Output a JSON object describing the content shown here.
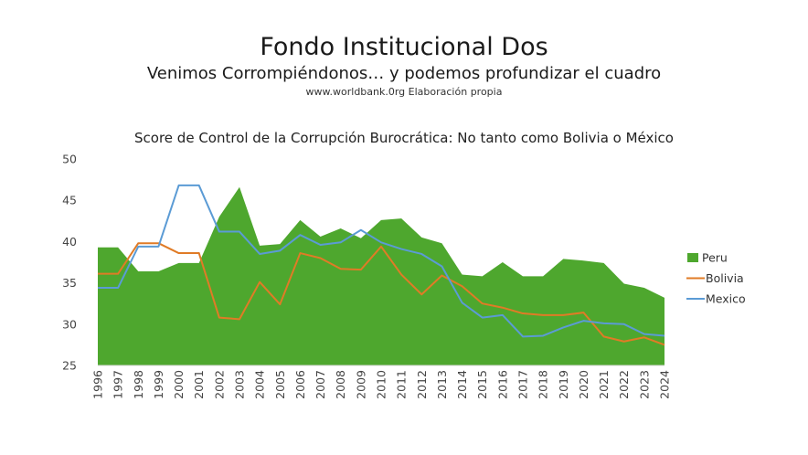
{
  "page": {
    "title": "Fondo Institucional Dos",
    "subtitle": "Venimos Corrompiéndonos… y podemos profundizar el cuadro",
    "source": "www.worldbank.0rg Elaboración propia"
  },
  "chart_data": {
    "type": "area",
    "title": "Score de Control de la Corrupción Burocrática: No tanto como Bolivia o México",
    "categories": [
      "1996",
      "1997",
      "1998",
      "1999",
      "2000",
      "2001",
      "2002",
      "2003",
      "2004",
      "2005",
      "2006",
      "2007",
      "2008",
      "2009",
      "2010",
      "2011",
      "2012",
      "2013",
      "2014",
      "2015",
      "2016",
      "2017",
      "2018",
      "2019",
      "2020",
      "2021",
      "2022",
      "2023",
      "2024"
    ],
    "ylim": [
      25,
      50
    ],
    "yticks": [
      25,
      30,
      35,
      40,
      45,
      50
    ],
    "legend_position": "right",
    "grid": false,
    "series": [
      {
        "name": "Peru",
        "kind": "area",
        "color": "#4ea72e",
        "values": [
          39.3,
          39.3,
          36.4,
          36.4,
          37.4,
          37.4,
          43.0,
          46.6,
          39.5,
          39.7,
          42.6,
          40.6,
          41.6,
          40.4,
          42.6,
          42.8,
          40.5,
          39.8,
          36.0,
          35.8,
          37.5,
          35.8,
          35.8,
          37.9,
          37.7,
          37.4,
          34.9,
          34.4,
          33.2
        ]
      },
      {
        "name": "Bolivia",
        "kind": "line",
        "color": "#e07b26",
        "values": [
          36.1,
          36.1,
          39.8,
          39.8,
          38.6,
          38.6,
          30.8,
          30.6,
          35.1,
          32.4,
          38.6,
          38.0,
          36.7,
          36.6,
          39.4,
          36.0,
          33.6,
          35.9,
          34.6,
          32.5,
          32.0,
          31.3,
          31.1,
          31.1,
          31.4,
          28.5,
          27.9,
          28.4,
          27.5
        ]
      },
      {
        "name": "Mexico",
        "kind": "line",
        "color": "#5b9bd5",
        "values": [
          34.4,
          34.4,
          39.4,
          39.4,
          46.8,
          46.8,
          41.2,
          41.2,
          38.5,
          38.9,
          40.8,
          39.6,
          39.9,
          41.4,
          39.9,
          39.1,
          38.5,
          37.0,
          32.6,
          30.8,
          31.1,
          28.5,
          28.6,
          29.6,
          30.4,
          30.1,
          30.0,
          28.8,
          28.6
        ]
      }
    ]
  }
}
